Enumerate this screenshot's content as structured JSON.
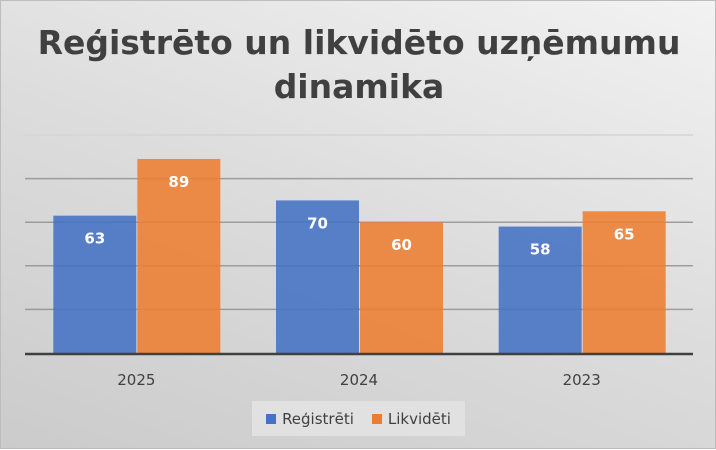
{
  "chart_data": {
    "type": "bar",
    "title": "Reģistrēto un likvidēto uzņēmumu dinamika",
    "categories": [
      "2025",
      "2024",
      "2023"
    ],
    "series": [
      {
        "name": "Reģistrēti",
        "values": [
          63,
          70,
          58
        ],
        "color": "#4472c4"
      },
      {
        "name": "Likvidēti",
        "values": [
          89,
          60,
          65
        ],
        "color": "#ed7d31"
      }
    ],
    "xlabel": "",
    "ylabel": "",
    "ylim": [
      0,
      100
    ],
    "ytick_step": 20,
    "grid": true,
    "legend": "bottom",
    "data_labels": true
  }
}
